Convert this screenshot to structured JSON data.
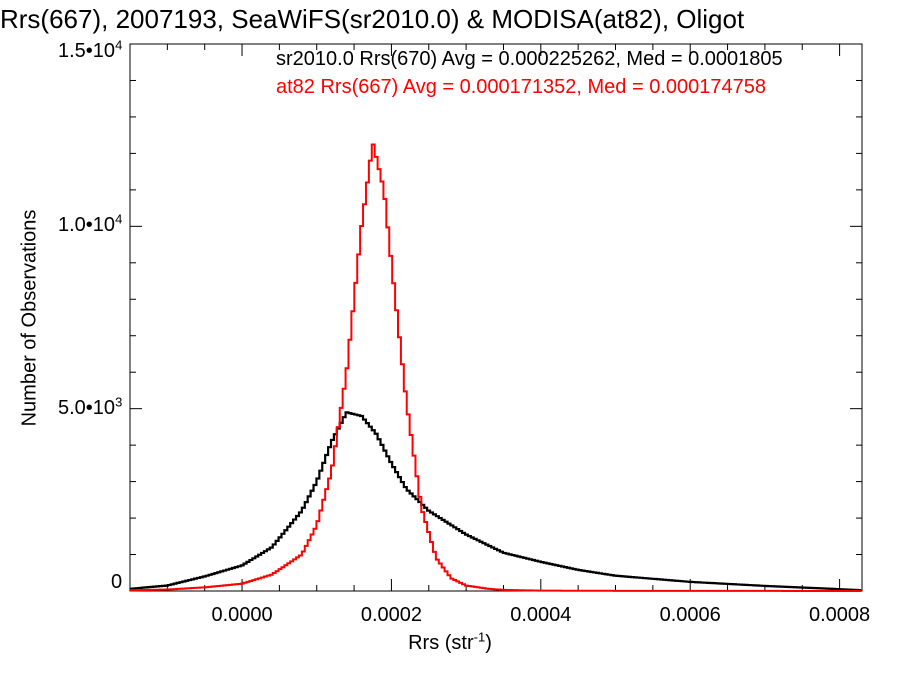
{
  "chart_data": {
    "type": "line",
    "title": "Rrs(667), 2007193, SeaWiFS(sr2010.0) & MODISA(at82), Oligot",
    "xlabel_base": "Rrs (str",
    "xlabel_sup": "-1",
    "xlabel_end": ")",
    "ylabel": "Number of Observations",
    "xlim": [
      -0.00015,
      0.00083
    ],
    "ylim": [
      0,
      15000
    ],
    "x_ticks": [
      {
        "value": 0.0,
        "label": "0.0000"
      },
      {
        "value": 0.0002,
        "label": "0.0002"
      },
      {
        "value": 0.0004,
        "label": "0.0004"
      },
      {
        "value": 0.0006,
        "label": "0.0006"
      },
      {
        "value": 0.0008,
        "label": "0.0008"
      }
    ],
    "y_ticks": [
      {
        "value": 0,
        "label": "0",
        "sup": ""
      },
      {
        "value": 5000,
        "label": "5.0•10",
        "sup": "3"
      },
      {
        "value": 10000,
        "label": "1.0•10",
        "sup": "4"
      },
      {
        "value": 15000,
        "label": "1.5•10",
        "sup": "4"
      }
    ],
    "legend": [
      {
        "text": "sr2010.0 Rrs(670) Avg = 0.000225262, Med = 0.0001805",
        "color": "#000000"
      },
      {
        "text": "at82 Rrs(667) Avg = 0.000171352, Med = 0.000174758",
        "color": "#ff0000"
      }
    ],
    "grid": false,
    "series": [
      {
        "name": "sr2010.0 Rrs(670)",
        "color": "#000000",
        "x": [
          -0.00015,
          -0.0001,
          -5e-05,
          0.0,
          4e-05,
          8e-05,
          0.0001,
          0.00012,
          0.00014,
          0.00016,
          0.00018,
          0.0002,
          0.00022,
          0.00025,
          0.0003,
          0.00035,
          0.0004,
          0.00045,
          0.0005,
          0.0006,
          0.0007,
          0.0008,
          0.00083
        ],
        "y": [
          60,
          150,
          400,
          700,
          1200,
          2200,
          3000,
          4100,
          4900,
          4800,
          4300,
          3500,
          2800,
          2200,
          1550,
          1050,
          800,
          580,
          420,
          250,
          140,
          50,
          20
        ]
      },
      {
        "name": "at82 Rrs(667)",
        "color": "#ff0000",
        "x": [
          -0.00015,
          -0.0001,
          -5e-05,
          0.0,
          4e-05,
          8e-05,
          0.0001,
          0.00012,
          0.00014,
          0.00016,
          0.000175,
          0.00019,
          0.0002,
          0.00022,
          0.00024,
          0.00026,
          0.00028,
          0.0003,
          0.00033,
          0.00035,
          0.0004,
          0.0005,
          0.0006,
          0.0007,
          0.0008,
          0.00083
        ],
        "y": [
          20,
          40,
          100,
          200,
          450,
          1000,
          1800,
          3300,
          6000,
          10000,
          12300,
          11000,
          9000,
          5200,
          2300,
          900,
          350,
          150,
          60,
          30,
          10,
          5,
          3,
          2,
          1,
          0
        ]
      }
    ]
  }
}
